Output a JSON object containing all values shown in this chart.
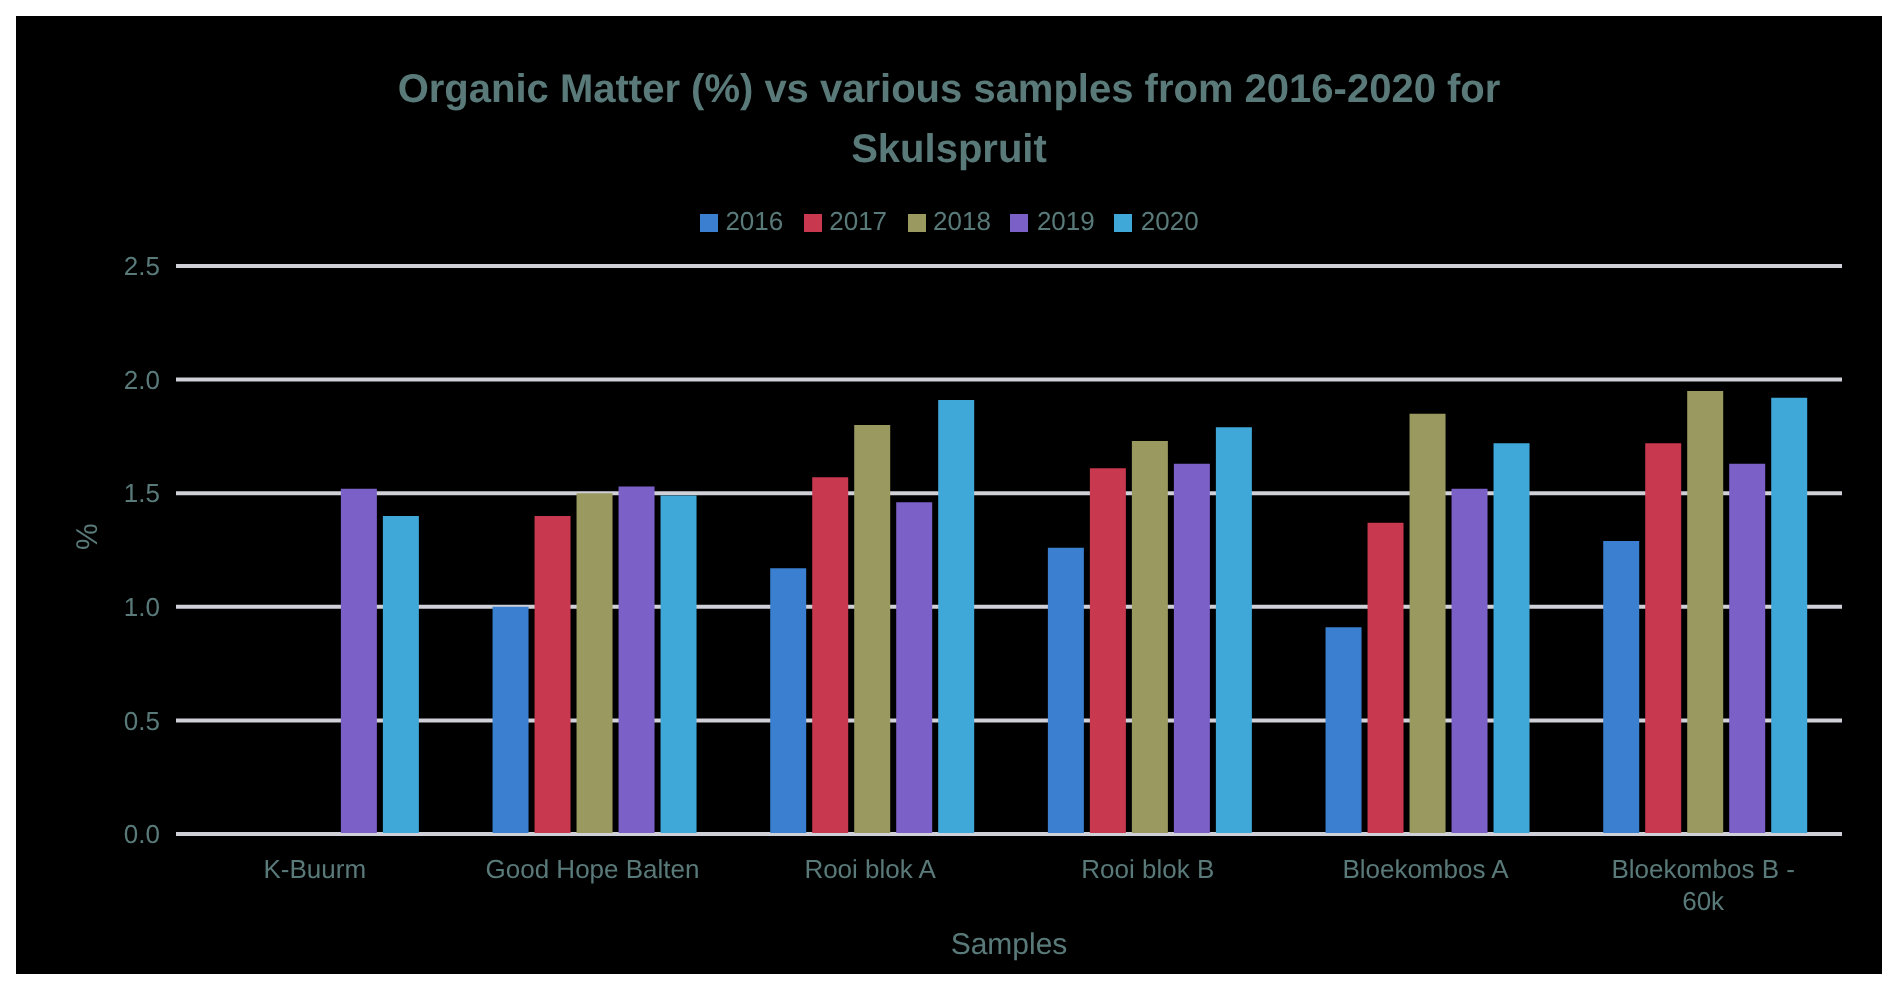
{
  "chart_data": {
    "type": "bar",
    "title": "Organic Matter (%) vs various samples from 2016-2020 for Skulspruit",
    "xlabel": "Samples",
    "ylabel": "%",
    "categories": [
      "K-Buurm",
      "Good Hope Balten",
      "Rooi blok A",
      "Rooi blok B",
      "Bloekombos A",
      "Bloekombos B - 60k"
    ],
    "series": [
      {
        "name": "2016",
        "color": "#3a7fd0",
        "values": [
          null,
          1.0,
          1.17,
          1.26,
          0.91,
          1.29
        ]
      },
      {
        "name": "2017",
        "color": "#c8384f",
        "values": [
          null,
          1.4,
          1.57,
          1.61,
          1.37,
          1.72
        ]
      },
      {
        "name": "2018",
        "color": "#9a9a60",
        "values": [
          null,
          1.5,
          1.8,
          1.73,
          1.85,
          1.95
        ]
      },
      {
        "name": "2019",
        "color": "#7b60c8",
        "values": [
          1.52,
          1.53,
          1.46,
          1.63,
          1.52,
          1.63
        ]
      },
      {
        "name": "2020",
        "color": "#40a8d8",
        "values": [
          1.4,
          1.49,
          1.91,
          1.79,
          1.72,
          1.92
        ]
      }
    ],
    "ylim": [
      0,
      2.5
    ],
    "yticks": [
      {
        "value": 0,
        "label": "0.0"
      },
      0.5,
      {
        "value": 1,
        "label": "1.0"
      },
      1.5,
      {
        "value": 2,
        "label": "2.0"
      },
      2.5
    ],
    "grid": "y",
    "legend": "top"
  }
}
